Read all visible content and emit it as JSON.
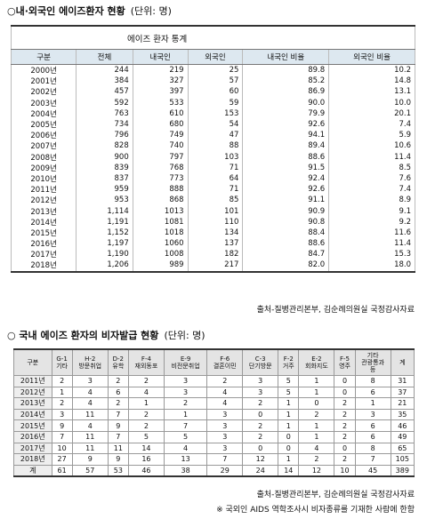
{
  "section1": {
    "title": "○내·외국인 에이즈환자 현황",
    "unit": "(단위: 명)",
    "table_title": "에이즈 환자 통계",
    "columns": [
      "구분",
      "전체",
      "내국인",
      "외국인",
      "내국인 비율",
      "외국인 비율"
    ],
    "rows": [
      [
        "2000년",
        "244",
        "219",
        "25",
        "89.8",
        "10.2"
      ],
      [
        "2001년",
        "384",
        "327",
        "57",
        "85.2",
        "14.8"
      ],
      [
        "2002년",
        "457",
        "397",
        "60",
        "86.9",
        "13.1"
      ],
      [
        "2003년",
        "592",
        "533",
        "59",
        "90.0",
        "10.0"
      ],
      [
        "2004년",
        "763",
        "610",
        "153",
        "79.9",
        "20.1"
      ],
      [
        "2005년",
        "734",
        "680",
        "54",
        "92.6",
        "7.4"
      ],
      [
        "2006년",
        "796",
        "749",
        "47",
        "94.1",
        "5.9"
      ],
      [
        "2007년",
        "828",
        "740",
        "88",
        "89.4",
        "10.6"
      ],
      [
        "2008년",
        "900",
        "797",
        "103",
        "88.6",
        "11.4"
      ],
      [
        "2009년",
        "839",
        "768",
        "71",
        "91.5",
        "8.5"
      ],
      [
        "2010년",
        "837",
        "773",
        "64",
        "92.4",
        "7.6"
      ],
      [
        "2011년",
        "959",
        "888",
        "71",
        "92.6",
        "7.4"
      ],
      [
        "2012년",
        "953",
        "868",
        "85",
        "91.1",
        "8.9"
      ],
      [
        "2013년",
        "1,114",
        "1013",
        "101",
        "90.9",
        "9.1"
      ],
      [
        "2014년",
        "1,191",
        "1081",
        "110",
        "90.8",
        "9.2"
      ],
      [
        "2015년",
        "1,152",
        "1018",
        "134",
        "88.4",
        "11.6"
      ],
      [
        "2016년",
        "1,197",
        "1060",
        "137",
        "88.6",
        "11.4"
      ],
      [
        "2017년",
        "1,190",
        "1008",
        "182",
        "84.7",
        "15.3"
      ],
      [
        "2018년",
        "1,206",
        "989",
        "217",
        "82.0",
        "18.0"
      ]
    ],
    "source": "출처-질병관리본부, 김순례의원실 국정감사자료"
  },
  "section2": {
    "title": "○ 국내 에이즈 환자의 비자발급 현황",
    "unit": "(단위: 명)",
    "columns": [
      [
        "구분"
      ],
      [
        "G-1",
        "기타"
      ],
      [
        "H-2",
        "방문취업"
      ],
      [
        "D-2",
        "유학"
      ],
      [
        "F-4",
        "재외동포"
      ],
      [
        "E-9",
        "비전문취업"
      ],
      [
        "F-6",
        "결혼이민"
      ],
      [
        "C-3",
        "단기방문"
      ],
      [
        "F-2",
        "거주"
      ],
      [
        "E-2",
        "회화지도"
      ],
      [
        "F-5",
        "영주"
      ],
      [
        "기타",
        "관광통과",
        "등"
      ],
      [
        "계"
      ]
    ],
    "rows": [
      [
        "2011년",
        "2",
        "3",
        "2",
        "2",
        "3",
        "2",
        "3",
        "5",
        "1",
        "0",
        "8",
        "31"
      ],
      [
        "2012년",
        "1",
        "4",
        "6",
        "4",
        "3",
        "4",
        "3",
        "5",
        "1",
        "0",
        "6",
        "37"
      ],
      [
        "2013년",
        "2",
        "4",
        "2",
        "1",
        "2",
        "4",
        "2",
        "1",
        "0",
        "2",
        "1",
        "21"
      ],
      [
        "2014년",
        "3",
        "11",
        "7",
        "2",
        "1",
        "3",
        "0",
        "1",
        "2",
        "2",
        "3",
        "35"
      ],
      [
        "2015년",
        "9",
        "4",
        "9",
        "2",
        "7",
        "3",
        "2",
        "1",
        "1",
        "2",
        "6",
        "46"
      ],
      [
        "2016년",
        "7",
        "11",
        "7",
        "5",
        "5",
        "3",
        "2",
        "0",
        "1",
        "2",
        "6",
        "49"
      ],
      [
        "2017년",
        "10",
        "11",
        "11",
        "14",
        "4",
        "3",
        "0",
        "0",
        "4",
        "0",
        "8",
        "65"
      ],
      [
        "2018년",
        "27",
        "9",
        "9",
        "16",
        "13",
        "7",
        "12",
        "1",
        "2",
        "2",
        "7",
        "105"
      ],
      [
        "계",
        "61",
        "57",
        "53",
        "46",
        "38",
        "29",
        "24",
        "14",
        "12",
        "10",
        "45",
        "389"
      ]
    ],
    "source": "출처-질병관리본부, 김순례의원실 국정감사자료",
    "note": "※ 국외인 AIDS 역학조사시 비자종류를 기재한 사람에 한함"
  }
}
